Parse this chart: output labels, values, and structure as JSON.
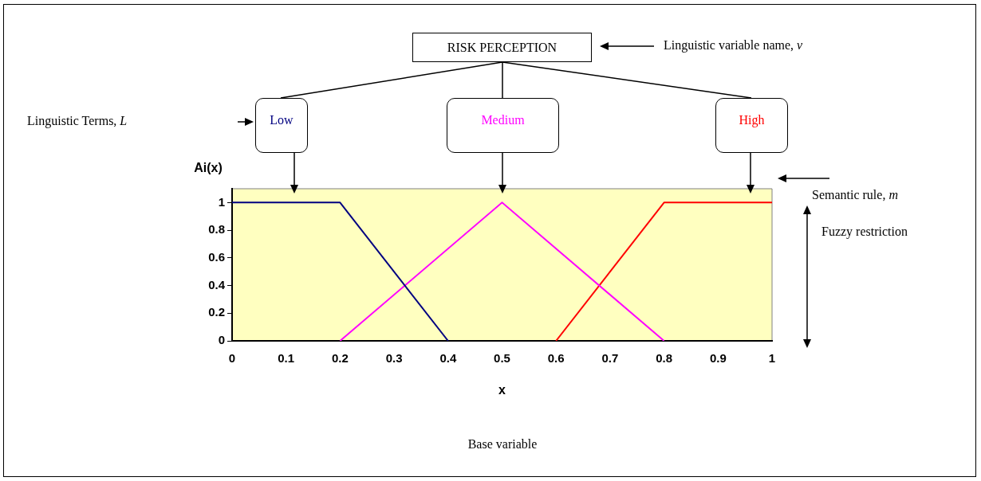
{
  "chart_data": {
    "type": "line",
    "xlabel": "x",
    "ylabel": "Ai(x)",
    "series": [
      {
        "name": "Low",
        "color": "#000080",
        "x": [
          0,
          0.2,
          0.4
        ],
        "values": [
          1,
          1,
          0
        ]
      },
      {
        "name": "Medium",
        "color": "#ff00ff",
        "x": [
          0.2,
          0.5,
          0.8
        ],
        "values": [
          0,
          1,
          0
        ]
      },
      {
        "name": "High",
        "color": "#ff0000",
        "x": [
          0.6,
          0.8,
          1
        ],
        "values": [
          0,
          1,
          1
        ]
      }
    ],
    "xlim": [
      0,
      1
    ],
    "xticks": [
      0,
      0.1,
      0.2,
      0.3,
      0.4,
      0.5,
      0.6,
      0.7,
      0.8,
      0.9,
      1
    ],
    "ylim": [
      0,
      1.1
    ],
    "yticks": [
      0,
      0.2,
      0.4,
      0.6,
      0.8,
      1
    ],
    "grid": false,
    "legend": false,
    "marker": "none",
    "line_style": "solid",
    "annotations": [
      "RISK PERCEPTION",
      "Linguistic variable name, v",
      "Linguistic Terms, L",
      "Semantic rule, m",
      "Fuzzy restriction",
      "Base variable"
    ]
  }
}
